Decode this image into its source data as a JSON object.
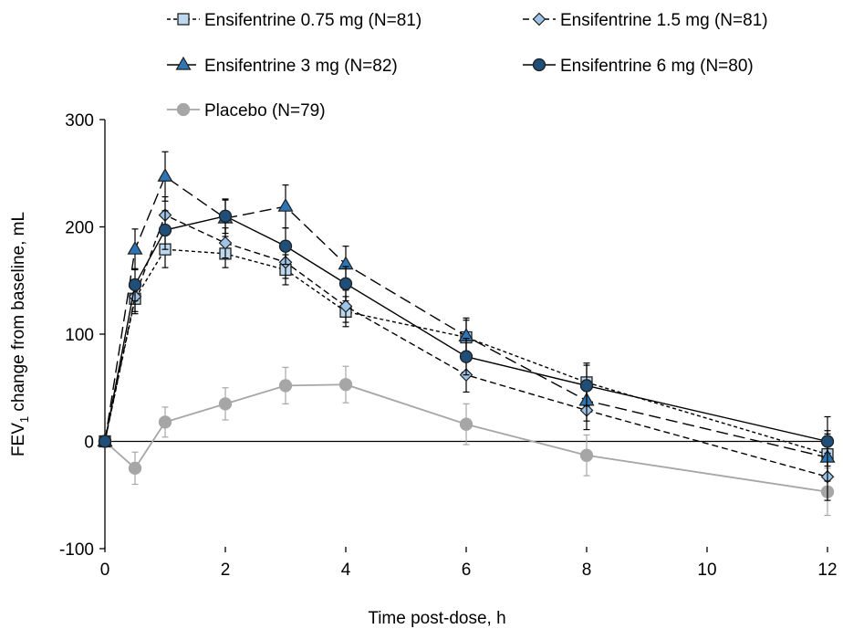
{
  "chart_data": {
    "type": "line",
    "title": "",
    "xlabel": "Time post-dose, h",
    "ylabel_prefix": "FEV",
    "ylabel_subscript": "1",
    "ylabel_suffix": " change from baseline, mL",
    "xlim": [
      0,
      12
    ],
    "ylim": [
      -100,
      300
    ],
    "x_ticks": [
      0,
      2,
      4,
      6,
      8,
      10,
      12
    ],
    "y_ticks": [
      -100,
      0,
      100,
      200,
      300
    ],
    "grid": false,
    "legend_position": "top",
    "series": [
      {
        "name": "Ensifentrine 0.75 mg (N=81)",
        "marker": "square",
        "line_style": "short-dash",
        "fill": "#bdd7ee",
        "x": [
          0,
          0.5,
          1,
          2,
          3,
          4,
          6,
          8,
          12
        ],
        "y": [
          0,
          133,
          179,
          175,
          160,
          121,
          97,
          55,
          -12
        ],
        "err": [
          0,
          14,
          17,
          13,
          14,
          14,
          16,
          18,
          22
        ]
      },
      {
        "name": "Ensifentrine 1.5 mg (N=81)",
        "marker": "diamond",
        "line_style": "dash",
        "fill": "#9dc3e6",
        "x": [
          0,
          0.5,
          1,
          2,
          3,
          4,
          6,
          8,
          12
        ],
        "y": [
          0,
          135,
          211,
          185,
          167,
          126,
          62,
          29,
          -33
        ],
        "err": [
          0,
          14,
          17,
          14,
          15,
          15,
          16,
          18,
          22
        ]
      },
      {
        "name": "Ensifentrine 3 mg (N=82)",
        "marker": "triangle",
        "line_style": "long-dash",
        "fill": "#2e75b6",
        "x": [
          0,
          0.5,
          1,
          2,
          3,
          4,
          6,
          8,
          12
        ],
        "y": [
          0,
          179,
          247,
          208,
          219,
          165,
          98,
          38,
          -15
        ],
        "err": [
          0,
          19,
          23,
          17,
          20,
          17,
          17,
          19,
          22
        ]
      },
      {
        "name": "Ensifentrine 6 mg (N=80)",
        "marker": "circle",
        "line_style": "solid",
        "fill": "#1f4e79",
        "x": [
          0,
          0.5,
          1,
          2,
          3,
          4,
          6,
          8,
          12
        ],
        "y": [
          0,
          146,
          197,
          210,
          182,
          147,
          79,
          52,
          0
        ],
        "err": [
          0,
          15,
          18,
          16,
          17,
          16,
          17,
          19,
          23
        ]
      },
      {
        "name": "Placebo (N=79)",
        "marker": "circle",
        "line_style": "solid",
        "fill": "#a6a6a6",
        "x": [
          0,
          0.5,
          1,
          2,
          3,
          4,
          6,
          8,
          12
        ],
        "y": [
          0,
          -25,
          18,
          35,
          52,
          53,
          16,
          -13,
          -47
        ],
        "err": [
          0,
          15,
          14,
          15,
          17,
          17,
          19,
          19,
          22
        ]
      }
    ]
  }
}
